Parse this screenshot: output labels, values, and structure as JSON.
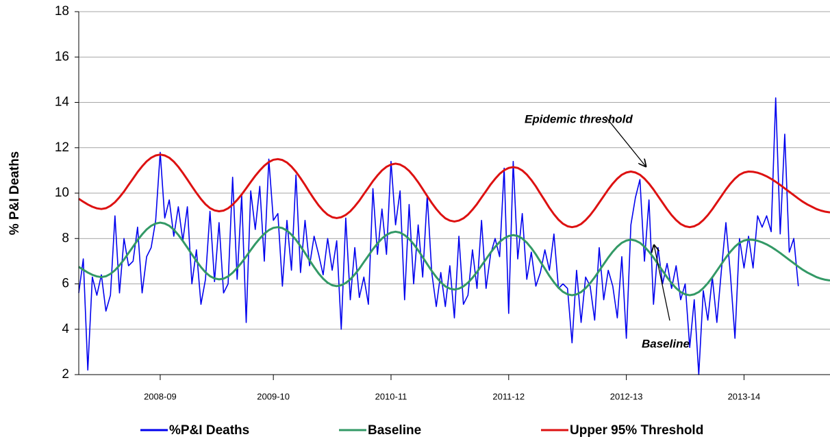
{
  "chart_data": {
    "type": "line",
    "y_label": "% P&I Deaths",
    "ylim": [
      2,
      18
    ],
    "yticks": [
      2,
      4,
      6,
      8,
      10,
      12,
      14,
      16,
      18
    ],
    "grid": true,
    "legend": "bottom",
    "annotations": [
      "Epidemic threshold",
      "Baseline"
    ],
    "categories": [
      null,
      null,
      null,
      null,
      null,
      null,
      null,
      null,
      null,
      null,
      null,
      null,
      null,
      null,
      null,
      null,
      null,
      null,
      "2008-09",
      null,
      null,
      null,
      null,
      null,
      null,
      null,
      null,
      null,
      null,
      null,
      null,
      null,
      null,
      null,
      null,
      null,
      null,
      null,
      null,
      null,
      null,
      null,
      null,
      "2009-10",
      null,
      null,
      null,
      null,
      null,
      null,
      null,
      null,
      null,
      null,
      null,
      null,
      null,
      null,
      null,
      null,
      null,
      null,
      null,
      null,
      null,
      null,
      null,
      null,
      null,
      "2010-11",
      null,
      null,
      null,
      null,
      null,
      null,
      null,
      null,
      null,
      null,
      null,
      null,
      null,
      null,
      null,
      null,
      null,
      null,
      null,
      null,
      null,
      null,
      null,
      null,
      null,
      "2011-12",
      null,
      null,
      null,
      null,
      null,
      null,
      null,
      null,
      null,
      null,
      null,
      null,
      null,
      null,
      null,
      null,
      null,
      null,
      null,
      null,
      null,
      null,
      null,
      null,
      null,
      "2012-13",
      null,
      null,
      null,
      null,
      null,
      null,
      null,
      null,
      null,
      null,
      null,
      null,
      null,
      null,
      null,
      null,
      null,
      null,
      null,
      null,
      null,
      null,
      null,
      null,
      null,
      "2013-14",
      null,
      null,
      null,
      null,
      null,
      null,
      null,
      null,
      null,
      null,
      null,
      null,
      null,
      null,
      null,
      null,
      null,
      null,
      null
    ],
    "series": [
      {
        "name": "%P&I Deaths",
        "color": "#0000ee",
        "width": 1.6,
        "values": [
          5.6,
          7.1,
          2.2,
          6.3,
          5.5,
          6.4,
          4.8,
          5.5,
          9.0,
          5.6,
          8.0,
          6.8,
          7.0,
          8.5,
          5.6,
          7.2,
          7.6,
          8.8,
          11.8,
          8.9,
          9.7,
          8.1,
          9.4,
          7.9,
          9.4,
          6.0,
          7.5,
          5.1,
          6.2,
          9.2,
          6.1,
          8.7,
          5.6,
          6.0,
          10.7,
          6.2,
          9.9,
          4.3,
          10.1,
          8.4,
          10.3,
          7.0,
          11.5,
          8.8,
          9.1,
          5.9,
          8.8,
          6.6,
          10.8,
          6.5,
          8.8,
          6.8,
          8.1,
          7.3,
          6.4,
          8.0,
          6.6,
          7.9,
          4.0,
          8.9,
          5.3,
          7.6,
          5.4,
          6.3,
          5.1,
          10.2,
          7.3,
          9.3,
          7.3,
          11.4,
          8.6,
          10.1,
          5.3,
          9.5,
          6.0,
          8.6,
          6.3,
          9.9,
          6.5,
          5.0,
          6.5,
          5.0,
          6.8,
          4.5,
          8.1,
          5.1,
          5.5,
          7.5,
          5.8,
          8.8,
          5.8,
          7.3,
          8.0,
          7.2,
          11.1,
          4.7,
          11.4,
          7.1,
          9.1,
          6.2,
          7.4,
          5.9,
          6.5,
          7.5,
          6.6,
          8.2,
          5.8,
          6.0,
          5.8,
          3.4,
          6.6,
          4.3,
          6.3,
          5.9,
          4.4,
          7.6,
          5.3,
          6.6,
          5.9,
          4.5,
          7.2,
          3.6,
          8.6,
          9.8,
          10.6,
          7.0,
          9.7,
          5.1,
          7.6,
          6.0,
          6.9,
          5.8,
          6.8,
          5.3,
          6.0,
          3.2,
          5.3,
          2.0,
          5.7,
          4.4,
          6.3,
          4.3,
          6.6,
          8.7,
          6.4,
          3.6,
          8.0,
          6.7,
          8.1,
          6.7,
          9.0,
          8.5,
          9.0,
          8.3,
          14.2,
          8.2,
          12.6,
          7.4,
          8.0,
          5.9,
          null,
          null,
          null,
          null,
          null,
          null,
          null
        ]
      },
      {
        "name": "Baseline",
        "color": "#339966",
        "width": 3,
        "values": [
          6.75,
          6.62,
          6.5,
          6.4,
          6.33,
          6.3,
          6.335,
          6.44,
          6.6,
          6.82,
          7.07,
          7.36,
          7.64,
          7.93,
          8.18,
          8.4,
          8.56,
          8.66,
          8.7,
          8.66,
          8.56,
          8.39,
          8.16,
          7.89,
          7.6,
          7.3,
          7.01,
          6.74,
          6.51,
          6.34,
          6.24,
          6.2,
          6.23,
          6.33,
          6.49,
          6.7,
          6.94,
          7.21,
          7.49,
          7.76,
          8.0,
          8.21,
          8.37,
          8.47,
          8.5,
          8.46,
          8.35,
          8.17,
          7.94,
          7.66,
          7.36,
          7.04,
          6.74,
          6.46,
          6.23,
          6.05,
          5.94,
          5.9,
          5.94,
          6.04,
          6.2,
          6.42,
          6.67,
          6.96,
          7.24,
          7.53,
          7.78,
          8.0,
          8.16,
          8.26,
          8.3,
          8.26,
          8.15,
          7.98,
          7.75,
          7.48,
          7.18,
          6.87,
          6.57,
          6.3,
          6.07,
          5.89,
          5.79,
          5.75,
          5.79,
          5.89,
          6.05,
          6.27,
          6.52,
          6.81,
          7.09,
          7.38,
          7.63,
          7.85,
          8.01,
          8.11,
          8.15,
          8.11,
          8.0,
          7.82,
          7.58,
          7.3,
          6.98,
          6.67,
          6.35,
          6.07,
          5.83,
          5.65,
          5.54,
          5.5,
          5.54,
          5.64,
          5.81,
          6.03,
          6.29,
          6.58,
          6.87,
          7.16,
          7.42,
          7.64,
          7.81,
          7.91,
          7.95,
          7.91,
          7.81,
          7.64,
          7.42,
          7.16,
          6.87,
          6.58,
          6.29,
          6.03,
          5.81,
          5.64,
          5.54,
          5.5,
          5.54,
          5.64,
          5.81,
          6.03,
          6.29,
          6.58,
          6.87,
          7.16,
          7.42,
          7.64,
          7.81,
          7.91,
          7.95,
          7.94,
          7.9,
          7.83,
          7.74,
          7.63,
          7.5,
          7.36,
          7.21,
          7.06,
          6.91,
          6.76,
          6.62,
          6.5,
          6.4,
          6.3,
          6.23,
          6.18,
          6.15
        ]
      },
      {
        "name": "Upper 95% Threshold",
        "color": "#dd1111",
        "width": 3,
        "values": [
          9.75,
          9.62,
          9.5,
          9.4,
          9.33,
          9.3,
          9.335,
          9.44,
          9.6,
          9.82,
          10.07,
          10.36,
          10.64,
          10.93,
          11.18,
          11.4,
          11.56,
          11.66,
          11.7,
          11.66,
          11.56,
          11.39,
          11.16,
          10.89,
          10.6,
          10.3,
          10.01,
          9.74,
          9.51,
          9.34,
          9.24,
          9.2,
          9.23,
          9.33,
          9.49,
          9.7,
          9.94,
          10.21,
          10.49,
          10.76,
          11.0,
          11.21,
          11.37,
          11.47,
          11.5,
          11.46,
          11.35,
          11.17,
          10.94,
          10.66,
          10.36,
          10.04,
          9.74,
          9.46,
          9.23,
          9.05,
          8.94,
          8.9,
          8.94,
          9.04,
          9.2,
          9.42,
          9.67,
          9.96,
          10.24,
          10.53,
          10.78,
          11.0,
          11.16,
          11.26,
          11.3,
          11.26,
          11.15,
          10.98,
          10.75,
          10.48,
          10.18,
          9.87,
          9.57,
          9.3,
          9.07,
          8.89,
          8.79,
          8.75,
          8.79,
          8.89,
          9.05,
          9.27,
          9.52,
          9.81,
          10.09,
          10.38,
          10.63,
          10.85,
          11.01,
          11.11,
          11.15,
          11.11,
          11.0,
          10.82,
          10.58,
          10.3,
          9.98,
          9.67,
          9.35,
          9.07,
          8.83,
          8.65,
          8.54,
          8.5,
          8.54,
          8.64,
          8.81,
          9.03,
          9.29,
          9.58,
          9.87,
          10.16,
          10.42,
          10.64,
          10.81,
          10.91,
          10.95,
          10.91,
          10.81,
          10.64,
          10.42,
          10.16,
          9.87,
          9.58,
          9.29,
          9.03,
          8.81,
          8.64,
          8.54,
          8.5,
          8.54,
          8.64,
          8.81,
          9.03,
          9.29,
          9.58,
          9.87,
          10.16,
          10.42,
          10.64,
          10.81,
          10.91,
          10.95,
          10.94,
          10.9,
          10.83,
          10.74,
          10.63,
          10.5,
          10.36,
          10.21,
          10.06,
          9.91,
          9.76,
          9.62,
          9.5,
          9.4,
          9.3,
          9.23,
          9.18,
          9.15
        ]
      }
    ]
  }
}
